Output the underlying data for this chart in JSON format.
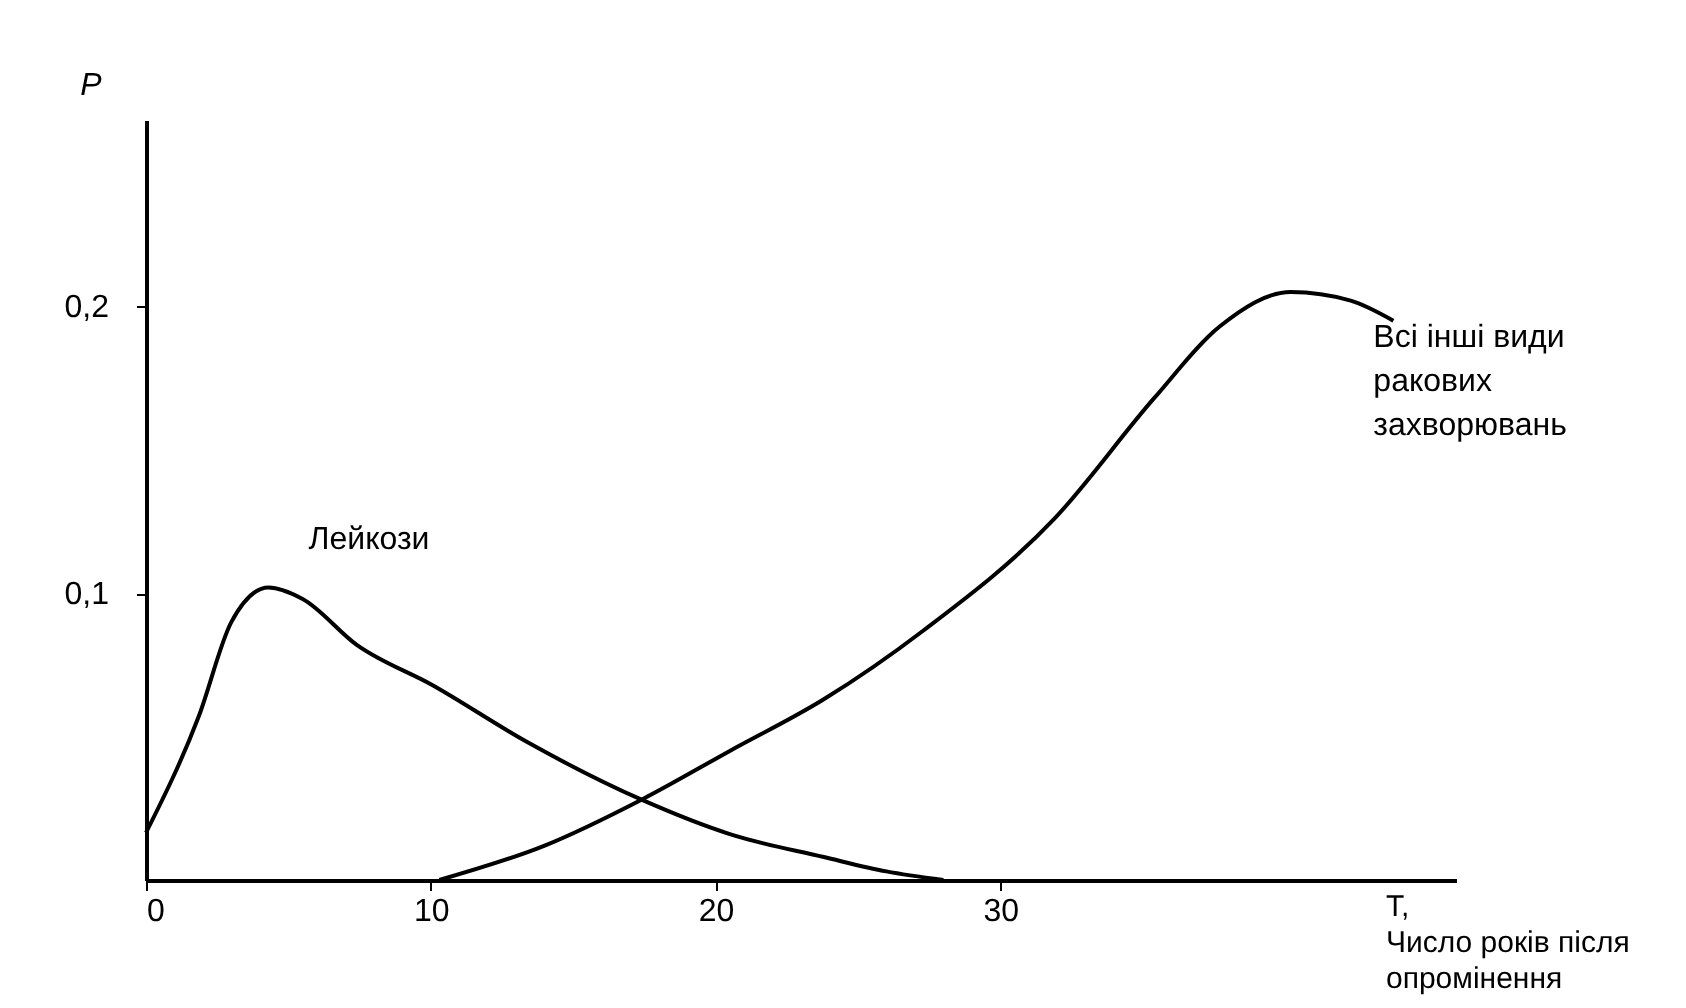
{
  "chart_data": {
    "type": "line",
    "xlabel": "T,\nЧисло років після\nопромінення",
    "ylabel": "P",
    "series": [
      {
        "name": "Лейкози",
        "color": "#000000",
        "x": [
          0,
          1.85,
          3,
          4.3,
          5.5,
          7.4,
          10.05,
          13.4,
          17.4,
          20.5,
          23.8,
          26,
          28
        ],
        "values": [
          0.0165,
          0.057,
          0.09,
          0.102,
          0.098,
          0.082,
          0.068,
          0.048,
          0.028,
          0.016,
          0.008,
          0.003,
          0
        ]
      },
      {
        "name": "Всі інші види\nракових\nзахворювань",
        "color": "#000000",
        "x": [
          10.3,
          14,
          17.4,
          20.5,
          23.8,
          27.3,
          31.9,
          35.4,
          37.7,
          40.2,
          42.3,
          43.8
        ],
        "values": [
          0,
          0.012,
          0.028,
          0.045,
          0.063,
          0.087,
          0.126,
          0.168,
          0.193,
          0.205,
          0.202,
          0.195
        ]
      }
    ],
    "xlim": [
      0,
      46
    ],
    "ylim": [
      0,
      0.265
    ],
    "xticks": [
      0,
      10,
      20,
      30
    ],
    "yticks": [
      {
        "value": 0.1,
        "label": "0,1"
      },
      {
        "value": 0.2,
        "label": "0,2"
      }
    ],
    "marker": "none",
    "line_style": "solid"
  }
}
